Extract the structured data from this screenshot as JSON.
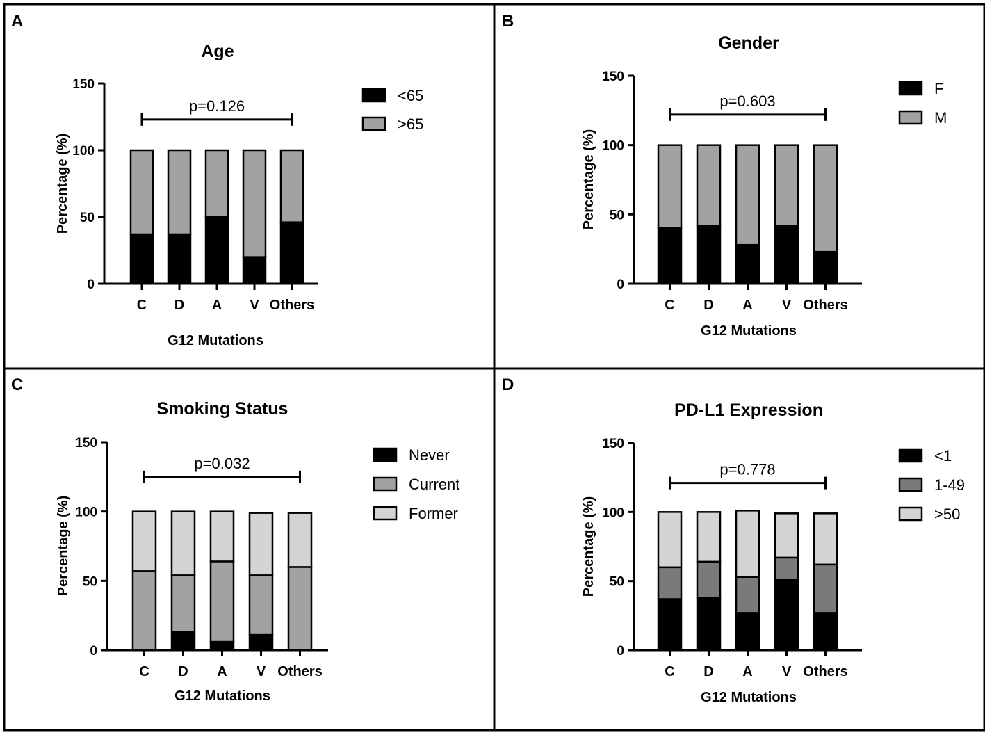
{
  "chart_data": [
    {
      "panel": "A",
      "type": "bar",
      "stacked": true,
      "title": "Age",
      "xlabel": "G12 Mutations",
      "ylabel": "Percentage (%)",
      "ylim": [
        0,
        150
      ],
      "yticks": [
        0,
        50,
        100,
        150
      ],
      "categories": [
        "C",
        "D",
        "A",
        "V",
        "Others"
      ],
      "series": [
        {
          "name": "<65",
          "color": "#000000",
          "values": [
            37,
            37,
            50,
            20,
            46
          ]
        },
        {
          "name": ">65",
          "color": "#a2a2a2",
          "values": [
            63,
            63,
            50,
            80,
            54
          ]
        }
      ],
      "annotation": {
        "text": "p=0.126",
        "y": 123,
        "from": "C",
        "to": "Others"
      },
      "legend_position": "top-right"
    },
    {
      "panel": "B",
      "type": "bar",
      "stacked": true,
      "title": "Gender",
      "xlabel": "G12 Mutations",
      "ylabel": "Percentage (%)",
      "ylim": [
        0,
        150
      ],
      "yticks": [
        0,
        50,
        100,
        150
      ],
      "categories": [
        "C",
        "D",
        "A",
        "V",
        "Others"
      ],
      "series": [
        {
          "name": "F",
          "color": "#000000",
          "values": [
            40,
            42,
            28,
            42,
            23
          ]
        },
        {
          "name": "M",
          "color": "#a2a2a2",
          "values": [
            60,
            58,
            72,
            58,
            77
          ]
        }
      ],
      "annotation": {
        "text": "p=0.603",
        "y": 122,
        "from": "C",
        "to": "Others"
      },
      "legend_position": "top-right"
    },
    {
      "panel": "C",
      "type": "bar",
      "stacked": true,
      "title": "Smoking Status",
      "xlabel": "G12 Mutations",
      "ylabel": "Percentage (%)",
      "ylim": [
        0,
        150
      ],
      "yticks": [
        0,
        50,
        100,
        150
      ],
      "categories": [
        "C",
        "D",
        "A",
        "V",
        "Others"
      ],
      "series": [
        {
          "name": "Never",
          "color": "#000000",
          "values": [
            0,
            13,
            6,
            11,
            0
          ]
        },
        {
          "name": "Current",
          "color": "#a2a2a2",
          "values": [
            57,
            41,
            58,
            43,
            60
          ]
        },
        {
          "name": "Former",
          "color": "#d4d4d4",
          "values": [
            43,
            46,
            36,
            45,
            39
          ]
        }
      ],
      "annotation": {
        "text": "p=0.032",
        "y": 125,
        "from": "C",
        "to": "Others"
      },
      "legend_position": "top-right"
    },
    {
      "panel": "D",
      "type": "bar",
      "stacked": true,
      "title": "PD-L1 Expression",
      "xlabel": "G12 Mutations",
      "ylabel": "Percentage (%)",
      "ylim": [
        0,
        150
      ],
      "yticks": [
        0,
        50,
        100,
        150
      ],
      "categories": [
        "C",
        "D",
        "A",
        "V",
        "Others"
      ],
      "series": [
        {
          "name": "<1",
          "color": "#000000",
          "values": [
            37,
            38,
            27,
            51,
            27
          ]
        },
        {
          "name": "1-49",
          "color": "#7a7a7a",
          "values": [
            23,
            26,
            26,
            16,
            35
          ]
        },
        {
          "name": ">50",
          "color": "#d4d4d4",
          "values": [
            40,
            36,
            48,
            32,
            37
          ]
        }
      ],
      "annotation": {
        "text": "p=0.778",
        "y": 121,
        "from": "C",
        "to": "Others"
      },
      "legend_position": "top-right"
    }
  ]
}
